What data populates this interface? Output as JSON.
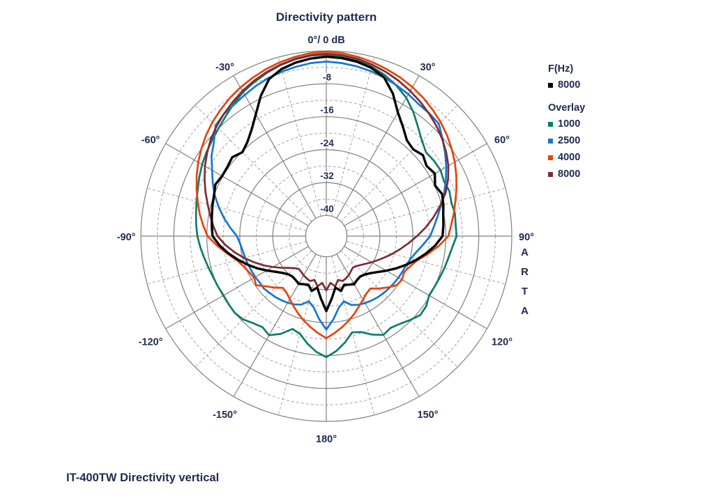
{
  "title": "Directivity pattern",
  "caption": "IT-400TW Directivity vertical",
  "watermark": "ARTA",
  "text_color": "#202c4e",
  "legend": {
    "freq_label": "F(Hz)",
    "freq_items": [
      {
        "label": "8000",
        "color": "#000000"
      }
    ],
    "overlay_label": "Overlay",
    "overlay_items": [
      {
        "label": "1000",
        "color": "#0c7c6a"
      },
      {
        "label": "2500",
        "color": "#1576d2"
      },
      {
        "label": "4000",
        "color": "#e8430b"
      },
      {
        "label": "8000",
        "color": "#7d2b31"
      }
    ]
  },
  "chart_data": {
    "type": "line",
    "subtype": "polar-directivity",
    "title": "Directivity pattern",
    "units": {
      "angle": "deg",
      "value": "dB"
    },
    "angle_start": -180,
    "angle_step": 5,
    "r_axis": {
      "max_db": 0,
      "min_db": -45,
      "top_label": "0°/ 0 dB",
      "solid_rings_db": [
        0,
        -8,
        -16,
        -24,
        -32,
        -40
      ],
      "dashed_rings_db": [
        -4,
        -12,
        -20,
        -28,
        -36
      ],
      "ticks": [
        {
          "db": -8,
          "label": "-8"
        },
        {
          "db": -16,
          "label": "-16"
        },
        {
          "db": -24,
          "label": "-24"
        },
        {
          "db": -32,
          "label": "-32"
        },
        {
          "db": -40,
          "label": "-40"
        }
      ]
    },
    "angle_ticks": [
      {
        "angle": 0,
        "label": "0°/ 0 dB"
      },
      {
        "angle": 30,
        "label": "30°"
      },
      {
        "angle": 60,
        "label": "60°"
      },
      {
        "angle": 90,
        "label": "90°"
      },
      {
        "angle": 120,
        "label": "120°"
      },
      {
        "angle": 150,
        "label": "150°"
      },
      {
        "angle": 180,
        "label": "180°"
      },
      {
        "angle": -30,
        "label": "-30°"
      },
      {
        "angle": -60,
        "label": "-60°"
      },
      {
        "angle": -90,
        "label": "-90°"
      },
      {
        "angle": -120,
        "label": "-120°"
      },
      {
        "angle": -150,
        "label": "-150°"
      }
    ],
    "grid": {
      "solid_angle_step": 30,
      "dashed_angle_step": 15,
      "solid_color": "#7f7f7f",
      "dashed_color": "#a3a3a3"
    },
    "series": [
      {
        "name": "1000",
        "group": "Overlay",
        "color": "#0c7c6a",
        "width": 2.7,
        "values": [
          -15.6,
          -16.8,
          -18.5,
          -20.4,
          -21.0,
          -18.8,
          -17.2,
          -18.0,
          -17.4,
          -16.4,
          -16.0,
          -16.1,
          -16.2,
          -16.0,
          -15.8,
          -15.4,
          -14.9,
          -14.3,
          -13.7,
          -13.3,
          -12.9,
          -12.4,
          -11.8,
          -11.0,
          -10.2,
          -9.5,
          -8.8,
          -8.0,
          -7.0,
          -5.8,
          -4.6,
          -3.7,
          -2.8,
          -2.0,
          -1.4,
          -1.0,
          -0.9,
          -1.1,
          -1.6,
          -2.4,
          -3.4,
          -4.7,
          -6.2,
          -8.2,
          -10.4,
          -12.2,
          -13.4,
          -13.1,
          -13.0,
          -13.5,
          -13.2,
          -13.6,
          -13.3,
          -13.5,
          -13.4,
          -14.3,
          -14.9,
          -15.3,
          -15.7,
          -16.0,
          -16.2,
          -15.4,
          -15.2,
          -16.2,
          -17.2,
          -17.8,
          -17.3,
          -18.6,
          -20.2,
          -20.8,
          -18.8,
          -17.0,
          -15.6
        ]
      },
      {
        "name": "2500",
        "group": "Overlay",
        "color": "#1576d2",
        "width": 2.7,
        "values": [
          -22.3,
          -24.8,
          -27.4,
          -28.6,
          -27.3,
          -26.7,
          -26.3,
          -26.0,
          -25.7,
          -25.5,
          -25.2,
          -25.3,
          -25.1,
          -25.0,
          -24.8,
          -24.6,
          -24.4,
          -24.0,
          -23.3,
          -21.6,
          -19.8,
          -18.0,
          -16.2,
          -14.6,
          -13.0,
          -11.0,
          -9.4,
          -7.0,
          -6.3,
          -6.0,
          -5.4,
          -4.7,
          -4.1,
          -3.6,
          -3.2,
          -2.8,
          -2.6,
          -2.8,
          -3.1,
          -3.5,
          -4.0,
          -4.6,
          -5.2,
          -5.9,
          -6.1,
          -6.4,
          -8.2,
          -9.8,
          -11.4,
          -13.0,
          -14.6,
          -16.2,
          -17.6,
          -18.8,
          -19.8,
          -21.4,
          -22.8,
          -23.8,
          -24.4,
          -24.6,
          -24.8,
          -25.0,
          -25.2,
          -25.4,
          -25.6,
          -25.9,
          -26.2,
          -26.6,
          -27.2,
          -28.6,
          -27.4,
          -24.8,
          -22.3
        ]
      },
      {
        "name": "4000",
        "group": "Overlay",
        "color": "#e8430b",
        "width": 2.7,
        "values": [
          -20.2,
          -21.4,
          -22.6,
          -23.8,
          -25.0,
          -26.2,
          -27.3,
          -28.2,
          -28.6,
          -27.3,
          -26.0,
          -24.2,
          -24.8,
          -24.3,
          -23.6,
          -22.5,
          -20.6,
          -18.4,
          -16.2,
          -15.0,
          -13.8,
          -12.7,
          -11.5,
          -10.3,
          -9.1,
          -8.0,
          -6.9,
          -5.9,
          -5.0,
          -4.1,
          -3.3,
          -2.6,
          -1.9,
          -1.3,
          -0.8,
          -0.4,
          -0.2,
          -0.4,
          -0.8,
          -1.3,
          -1.9,
          -2.5,
          -3.2,
          -4.0,
          -4.9,
          -5.8,
          -6.8,
          -7.9,
          -9.0,
          -10.2,
          -11.4,
          -12.6,
          -13.6,
          -14.6,
          -15.4,
          -17.6,
          -20.0,
          -22.2,
          -23.4,
          -24.2,
          -23.8,
          -24.2,
          -25.6,
          -27.0,
          -28.4,
          -28.0,
          -27.2,
          -26.2,
          -25.0,
          -23.8,
          -22.6,
          -21.4,
          -20.2
        ]
      },
      {
        "name": "8000",
        "group": "Overlay",
        "color": "#7d2b31",
        "width": 2.7,
        "values": [
          -31.8,
          -33.6,
          -32.6,
          -34.0,
          -33.4,
          -33.7,
          -34.0,
          -34.4,
          -34.6,
          -34.0,
          -33.0,
          -31.6,
          -30.0,
          -28.2,
          -26.4,
          -24.4,
          -22.4,
          -20.4,
          -18.6,
          -17.5,
          -16.4,
          -15.2,
          -13.8,
          -12.4,
          -11.0,
          -9.7,
          -8.4,
          -7.3,
          -6.3,
          -5.3,
          -4.3,
          -3.4,
          -2.6,
          -1.9,
          -1.3,
          -0.9,
          -0.7,
          -0.9,
          -1.3,
          -1.9,
          -2.6,
          -3.4,
          -4.3,
          -5.2,
          -6.2,
          -7.2,
          -8.3,
          -9.5,
          -10.8,
          -12.4,
          -14.2,
          -16.4,
          -18.6,
          -20.8,
          -23.0,
          -25.0,
          -26.8,
          -28.4,
          -29.9,
          -31.2,
          -32.3,
          -33.3,
          -34.1,
          -34.7,
          -35.0,
          -34.6,
          -34.1,
          -33.7,
          -33.4,
          -34.0,
          -32.6,
          -33.6,
          -31.8
        ]
      },
      {
        "name": "8000",
        "group": "F(Hz)",
        "color": "#000000",
        "width": 3.4,
        "values": [
          -26.8,
          -29.8,
          -32.3,
          -31.2,
          -32.4,
          -32.1,
          -31.6,
          -32.0,
          -32.2,
          -31.9,
          -31.1,
          -29.9,
          -28.3,
          -26.5,
          -24.7,
          -22.8,
          -20.9,
          -19.0,
          -17.4,
          -17.1,
          -16.8,
          -16.4,
          -16.0,
          -15.3,
          -15.8,
          -15.7,
          -15.2,
          -16.2,
          -15.2,
          -13.4,
          -10.8,
          -7.4,
          -4.4,
          -3.0,
          -2.2,
          -1.7,
          -1.4,
          -1.6,
          -2.0,
          -2.7,
          -4.0,
          -6.8,
          -10.3,
          -12.6,
          -14.6,
          -15.2,
          -14.4,
          -15.3,
          -14.6,
          -15.9,
          -15.1,
          -15.6,
          -16.2,
          -16.5,
          -16.8,
          -18.5,
          -20.5,
          -22.5,
          -24.5,
          -26.4,
          -28.2,
          -29.8,
          -31.0,
          -31.8,
          -32.2,
          -32.0,
          -31.5,
          -32.0,
          -32.4,
          -31.2,
          -32.3,
          -29.8,
          -26.8
        ]
      }
    ]
  }
}
